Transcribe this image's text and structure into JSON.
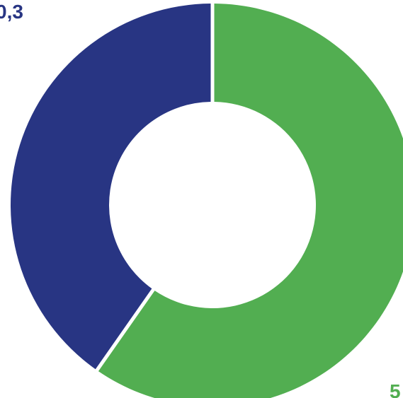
{
  "chart_data": {
    "type": "pie",
    "style": "donut",
    "legend": "none",
    "slices": [
      {
        "value": 59.7,
        "label": "5",
        "color": "#52AE51"
      },
      {
        "value": 40.3,
        "label": "0,3",
        "color": "#283583"
      }
    ]
  }
}
